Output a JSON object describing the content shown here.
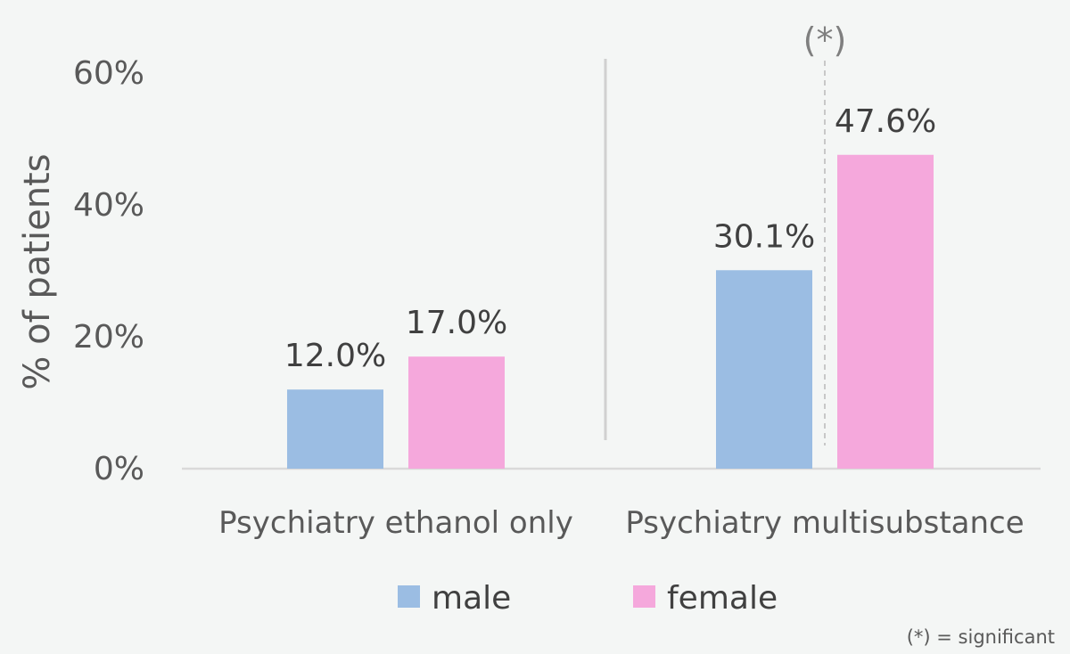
{
  "chart_data": {
    "type": "bar",
    "categories": [
      "Psychiatry ethanol only",
      "Psychiatry multisubstance"
    ],
    "series": [
      {
        "name": "male",
        "color": "#9bbde3",
        "values": [
          12.0,
          30.1
        ],
        "labels": [
          "12.0%",
          "30.1%"
        ]
      },
      {
        "name": "female",
        "color": "#f5a8dc",
        "values": [
          17.0,
          47.6
        ],
        "labels": [
          "17.0%",
          "47.6%"
        ]
      }
    ],
    "ylabel": "% of patients",
    "ylim": [
      0,
      60
    ],
    "yticks": [
      0,
      20,
      40,
      60
    ],
    "ytick_labels": [
      "0%",
      "20%",
      "40%",
      "60%"
    ],
    "grid": false,
    "legend_position": "bottom",
    "annotations": {
      "significance_marker": "(*)",
      "footnote": "(*) = significant"
    }
  }
}
